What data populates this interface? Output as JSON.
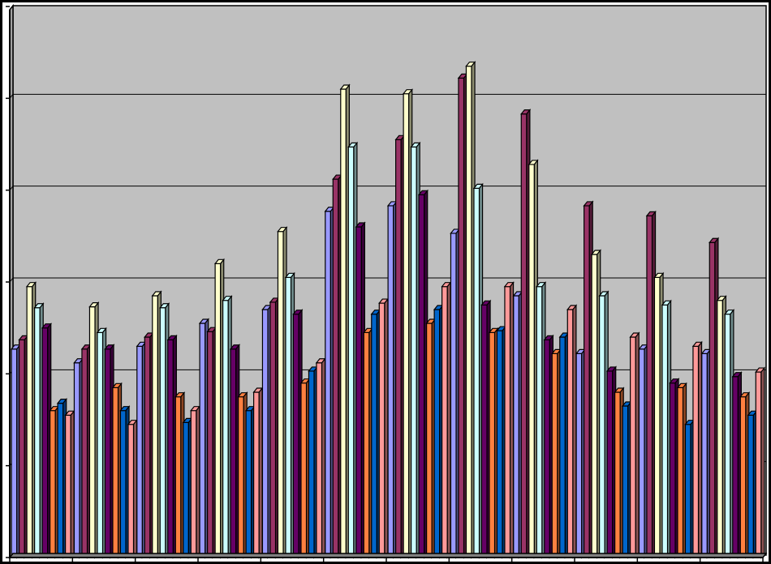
{
  "chart_data": {
    "type": "bar",
    "style": "3d-clustered-column",
    "title": "",
    "xlabel": "",
    "ylabel": "",
    "ylim": [
      0,
      6
    ],
    "grid": true,
    "legend": "none",
    "background_color": "#c0c0c0",
    "categories": [
      "",
      "",
      "",
      "",
      "",
      "",
      "",
      "",
      "",
      "",
      "",
      ""
    ],
    "series": [
      {
        "color": "#9999ff",
        "values": [
          2.27,
          2.12,
          2.3,
          2.55,
          2.7,
          3.77,
          3.83,
          3.53,
          2.85,
          2.22,
          2.27,
          2.22
        ]
      },
      {
        "color": "#993366",
        "values": [
          2.37,
          2.27,
          2.4,
          2.46,
          2.78,
          4.12,
          4.55,
          5.22,
          4.83,
          3.83,
          3.72,
          3.43
        ]
      },
      {
        "color": "#ffffcc",
        "values": [
          2.95,
          2.73,
          2.85,
          3.2,
          3.55,
          5.1,
          5.05,
          5.35,
          4.28,
          3.3,
          3.05,
          2.8
        ]
      },
      {
        "color": "#ccffff",
        "values": [
          2.72,
          2.45,
          2.72,
          2.8,
          3.05,
          4.47,
          4.47,
          4.02,
          2.95,
          2.85,
          2.75,
          2.65
        ]
      },
      {
        "color": "#660066",
        "values": [
          2.5,
          2.27,
          2.37,
          2.27,
          2.65,
          3.6,
          3.95,
          2.75,
          2.37,
          2.03,
          1.9,
          1.97
        ]
      },
      {
        "color": "#ff8040",
        "values": [
          1.6,
          1.85,
          1.75,
          1.75,
          1.9,
          2.45,
          2.55,
          2.45,
          2.22,
          1.8,
          1.85,
          1.75
        ]
      },
      {
        "color": "#0066cc",
        "values": [
          1.68,
          1.6,
          1.47,
          1.6,
          2.03,
          2.65,
          2.7,
          2.47,
          2.4,
          1.65,
          1.45,
          1.55
        ]
      },
      {
        "color": "#ff9999",
        "values": [
          1.55,
          1.45,
          1.6,
          1.8,
          2.12,
          2.77,
          2.95,
          2.95,
          2.7,
          2.4,
          2.3,
          2.02
        ]
      }
    ]
  }
}
